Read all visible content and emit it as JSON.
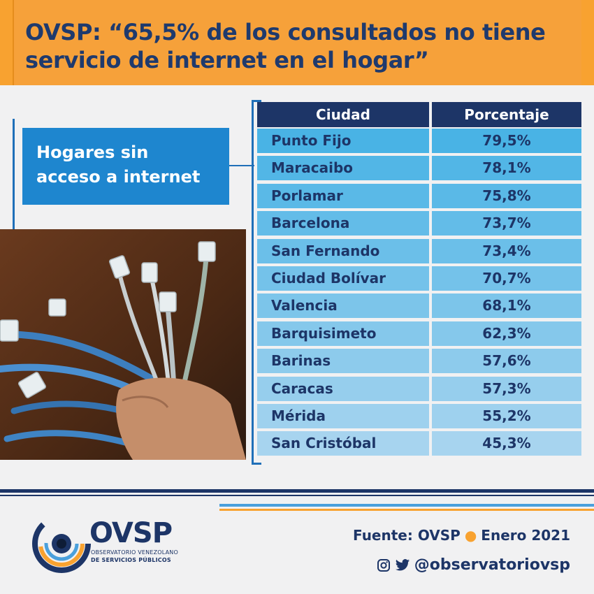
{
  "header": {
    "title_line1": "OVSP: “65,5% de los consultados no tiene",
    "title_line2": "servicio de internet en el hogar”"
  },
  "label": {
    "line1": "Hogares sin",
    "line2": "acceso a internet"
  },
  "colors": {
    "orange": "#f8a230",
    "navy": "#1d3567",
    "blue": "#1e86cf",
    "row_top": "#49b3e5",
    "row_bottom": "#a7d4ef"
  },
  "chart_data": {
    "type": "table",
    "columns": [
      "Ciudad",
      "Porcentaje"
    ],
    "rows": [
      {
        "city": "Punto Fijo",
        "value": 79.5,
        "display": "79,5%"
      },
      {
        "city": "Maracaibo",
        "value": 78.1,
        "display": "78,1%"
      },
      {
        "city": "Porlamar",
        "value": 75.8,
        "display": "75,8%"
      },
      {
        "city": "Barcelona",
        "value": 73.7,
        "display": "73,7%"
      },
      {
        "city": "San Fernando",
        "value": 73.4,
        "display": "73,4%"
      },
      {
        "city": "Ciudad Bolívar",
        "value": 70.7,
        "display": "70,7%"
      },
      {
        "city": "Valencia",
        "value": 68.1,
        "display": "68,1%"
      },
      {
        "city": "Barquisimeto",
        "value": 62.3,
        "display": "62,3%"
      },
      {
        "city": "Barinas",
        "value": 57.6,
        "display": "57,6%"
      },
      {
        "city": "Caracas",
        "value": 57.3,
        "display": "57,3%"
      },
      {
        "city": "Mérida",
        "value": 55.2,
        "display": "55,2%"
      },
      {
        "city": "San Cristóbal",
        "value": 45.3,
        "display": "45,3%"
      }
    ]
  },
  "logo": {
    "acronym": "OVSP",
    "line1": "OBSERVATORIO VENEZOLANO",
    "line2": "DE SERVICIOS PÚBLICOS"
  },
  "footer": {
    "source": "Fuente: OVSP",
    "date": "Enero 2021",
    "handle": "@observatoriovsp",
    "icons": [
      "instagram-icon",
      "twitter-icon"
    ]
  }
}
